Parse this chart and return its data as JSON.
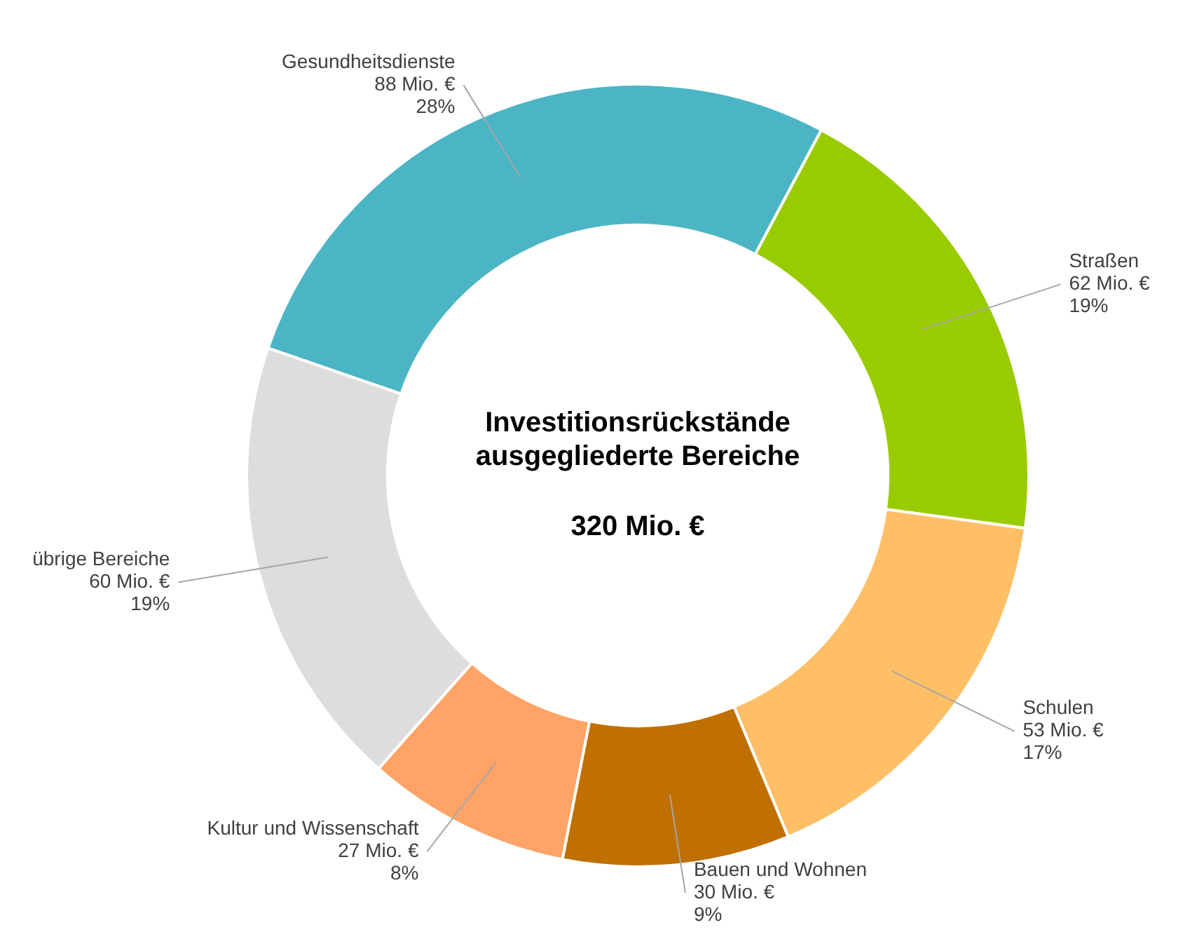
{
  "chart_data": {
    "type": "donut",
    "title": "Investitionsrückstände ausgegliederte Bereiche",
    "subtitle": "320 Mio. €",
    "categories": [
      "Gesundheitsdienste",
      "Straßen",
      "Schulen",
      "Bauen und Wohnen",
      "Kultur und Wissenschaft",
      "übrige Bereiche"
    ],
    "values": [
      88,
      62,
      53,
      30,
      27,
      60
    ],
    "colors": [
      "#4bb5c6",
      "#99cc00",
      "#ffbf66",
      "#c07000",
      "#ffa366",
      "#dddddd"
    ],
    "value_labels": [
      "88 Mio. €\n28%",
      "62 Mio. €\n19%",
      "53 Mio. €\n17%",
      "30 Mio. €\n9%",
      "27 Mio. €\n8%",
      "60 Mio. €\n19%"
    ],
    "legend": false
  }
}
